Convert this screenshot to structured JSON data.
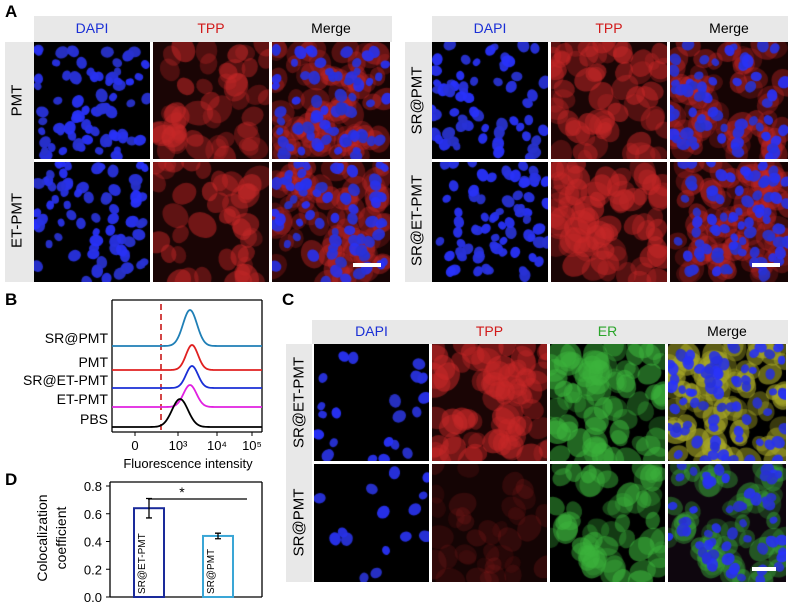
{
  "panels": {
    "A": "A",
    "B": "B",
    "C": "C",
    "D": "D"
  },
  "panelA": {
    "columns": [
      "DAPI",
      "TPP",
      "Merge"
    ],
    "left_rows": [
      "PMT",
      "ET-PMT"
    ],
    "right_rows": [
      "SR@PMT",
      "SR@ET-PMT"
    ]
  },
  "panelC": {
    "columns": [
      "DAPI",
      "TPP",
      "ER",
      "Merge"
    ],
    "rows": [
      "SR@ET-PMT",
      "SR@PMT"
    ]
  },
  "colors": {
    "dapi": "#1a2fd6",
    "tpp": "#d11a1a",
    "er": "#2aa52a"
  },
  "chart_data": [
    {
      "type": "line",
      "panel": "B",
      "xlabel": "Fluorescence intensity",
      "x_ticks": [
        "0",
        "10³",
        "10⁴",
        "10⁵"
      ],
      "dashed_line_x": "~500",
      "series": [
        {
          "name": "SR@PMT",
          "color": "#1f7fb6",
          "peak_x": "~3000"
        },
        {
          "name": "PMT",
          "color": "#e02020",
          "peak_x": "~2500"
        },
        {
          "name": "SR@ET-PMT",
          "color": "#1a2fd6",
          "peak_x": "~2000"
        },
        {
          "name": "ET-PMT",
          "color": "#e020e0",
          "peak_x": "~2200"
        },
        {
          "name": "PBS",
          "color": "#000000",
          "peak_x": "~1000"
        }
      ]
    },
    {
      "type": "bar",
      "panel": "D",
      "ylabel": "Colocalization coefficient",
      "ylim": [
        0,
        0.8
      ],
      "y_ticks": [
        "0.0",
        "0.2",
        "0.4",
        "0.6",
        "0.8"
      ],
      "categories": [
        "SR@ET-PMT",
        "SR@PMT"
      ],
      "values": [
        0.64,
        0.44
      ],
      "errors": [
        0.07,
        0.02
      ],
      "bar_colors": [
        "#1a2a9a",
        "#3aa6d6"
      ],
      "significance": "*"
    }
  ]
}
